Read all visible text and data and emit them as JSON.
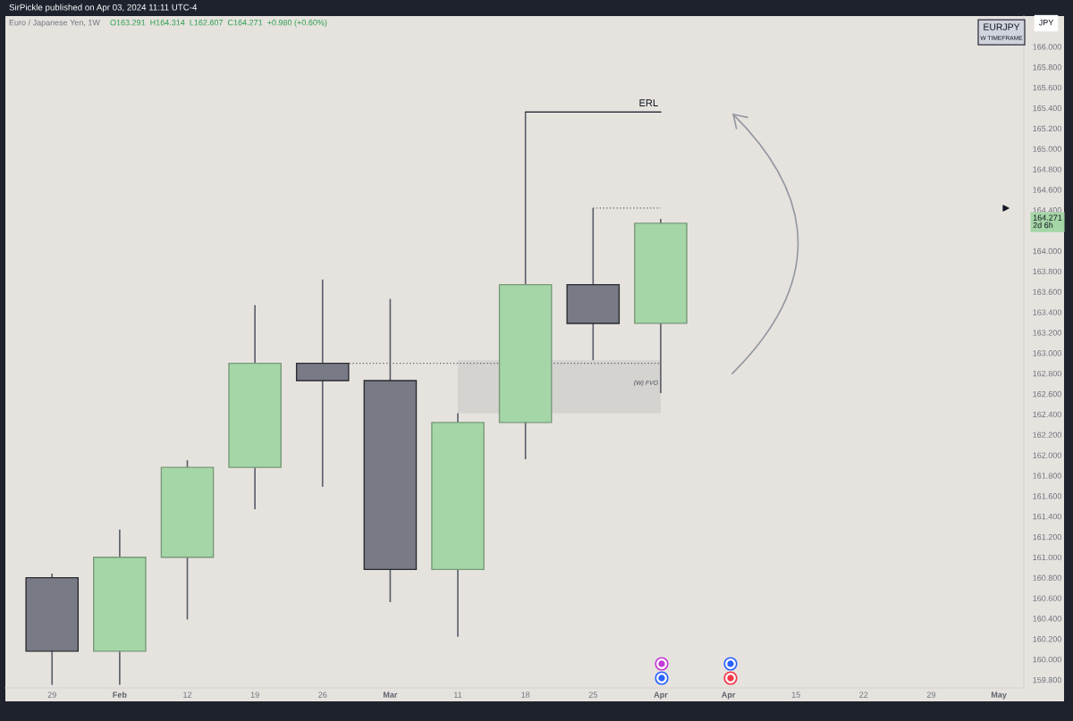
{
  "chart_data": {
    "type": "candlestick",
    "title": "Euro / Japanese Yen, 1W",
    "subtitle": "O163.291  H164.314  L162.607  C164.271  +0.980 (+0.60%)",
    "ylabel": "JPY",
    "x": [
      "2024-01-29",
      "2024-02-05",
      "2024-02-12",
      "2024-02-19",
      "2024-02-26",
      "2024-03-04",
      "2024-03-11",
      "2024-03-18",
      "2024-03-25",
      "2024-04-01"
    ],
    "ohlc": [
      [
        160.8,
        160.84,
        159.75,
        160.08
      ],
      [
        160.08,
        161.27,
        159.75,
        161.0
      ],
      [
        161.0,
        161.95,
        160.39,
        161.88
      ],
      [
        161.88,
        163.47,
        161.47,
        162.9
      ],
      [
        162.9,
        163.72,
        161.69,
        162.73
      ],
      [
        162.73,
        163.53,
        160.56,
        160.88
      ],
      [
        160.88,
        162.41,
        160.22,
        162.32
      ],
      [
        162.32,
        165.36,
        161.96,
        163.67
      ],
      [
        163.67,
        164.42,
        162.93,
        163.29
      ],
      [
        163.291,
        164.314,
        162.607,
        164.271
      ]
    ],
    "colors": [
      "#787b86",
      "#a5d6a7",
      "#a5d6a7",
      "#a5d6a7",
      "#787b86",
      "#787b86",
      "#a5d6a7",
      "#a5d6a7",
      "#787b86",
      "#a5d6a7"
    ],
    "series": [
      {
        "type": "line",
        "x": [
          "2024-03-11",
          "2024-04-01"
        ],
        "values": [
          null,
          null
        ],
        "lower": [
          162.41,
          162.41
        ],
        "upper": [
          162.93,
          162.93
        ],
        "color": "#d5d3d0"
      },
      {
        "type": "line",
        "x": [
          "2024-03-18",
          "2024-04-01"
        ],
        "values": [
          165.36,
          165.36
        ],
        "color": "#131722",
        "line_style": "solid"
      },
      {
        "type": "line",
        "x": [
          "2024-02-26",
          "2024-04-01"
        ],
        "values": [
          162.9,
          162.9
        ],
        "color": "#5d606b",
        "line_style": "dotted"
      },
      {
        "type": "line",
        "x": [
          "2024-03-25",
          "2024-04-01"
        ],
        "values": [
          164.42,
          164.42
        ],
        "color": "#5d606b",
        "line_style": "dotted"
      }
    ],
    "annotations": [
      "SirPickle published on Apr 03, 2024 11:11 UTC-4",
      "EURJPY",
      "W TIMEFRAME",
      "164.271\n2d 6h",
      {
        "text": "ERL",
        "x": "2024-04-01",
        "y": 165.36
      },
      {
        "text": "(W) FVG",
        "x": "2024-04-01",
        "y": 162.64
      }
    ],
    "xlim": [
      "2024-01-24T04:00",
      "2024-05-08T14:00"
    ],
    "xticks": [
      {
        "value": "2024-01-29",
        "label": "29"
      },
      {
        "value": "2024-02-05",
        "label": "Feb"
      },
      {
        "value": "2024-02-12",
        "label": "12"
      },
      {
        "value": "2024-02-19",
        "label": "19"
      },
      {
        "value": "2024-02-26",
        "label": "26"
      },
      {
        "value": "2024-03-04",
        "label": "Mar"
      },
      {
        "value": "2024-03-11",
        "label": "11"
      },
      {
        "value": "2024-03-18",
        "label": "18"
      },
      {
        "value": "2024-03-25",
        "label": "25"
      },
      {
        "value": "2024-04-01",
        "label": "Apr"
      },
      {
        "value": "2024-04-08",
        "label": "Apr"
      },
      {
        "value": "2024-04-15",
        "label": "15"
      },
      {
        "value": "2024-04-22",
        "label": "22"
      },
      {
        "value": "2024-04-29",
        "label": "29"
      },
      {
        "value": "2024-05-06",
        "label": "May"
      }
    ],
    "ylim": [
      159.72,
      166.3
    ],
    "yticks": [
      {
        "value": 159.8,
        "label": "159.800"
      },
      {
        "value": 160.0,
        "label": "160.000"
      },
      {
        "value": 160.2,
        "label": "160.200"
      },
      {
        "value": 160.4,
        "label": "160.400"
      },
      {
        "value": 160.6,
        "label": "160.600"
      },
      {
        "value": 160.8,
        "label": "160.800"
      },
      {
        "value": 161.0,
        "label": "161.000"
      },
      {
        "value": 161.2,
        "label": "161.200"
      },
      {
        "value": 161.4,
        "label": "161.400"
      },
      {
        "value": 161.6,
        "label": "161.600"
      },
      {
        "value": 161.8,
        "label": "161.800"
      },
      {
        "value": 162.0,
        "label": "162.000"
      },
      {
        "value": 162.2,
        "label": "162.200"
      },
      {
        "value": 162.4,
        "label": "162.400"
      },
      {
        "value": 162.6,
        "label": "162.600"
      },
      {
        "value": 162.8,
        "label": "162.800"
      },
      {
        "value": 163.0,
        "label": "163.000"
      },
      {
        "value": 163.2,
        "label": "163.200"
      },
      {
        "value": 163.4,
        "label": "163.400"
      },
      {
        "value": 163.6,
        "label": "163.600"
      },
      {
        "value": 163.8,
        "label": "163.800"
      },
      {
        "value": 164.0,
        "label": "164.000"
      },
      {
        "value": 164.4,
        "label": "164.400"
      },
      {
        "value": 164.6,
        "label": "164.600"
      },
      {
        "value": 164.8,
        "label": "164.800"
      },
      {
        "value": 165.0,
        "label": "165.000"
      },
      {
        "value": 165.2,
        "label": "165.200"
      },
      {
        "value": 165.4,
        "label": "165.400"
      },
      {
        "value": 165.6,
        "label": "165.600"
      },
      {
        "value": 165.8,
        "label": "165.800"
      },
      {
        "value": 166.0,
        "label": "166.000"
      }
    ]
  }
}
